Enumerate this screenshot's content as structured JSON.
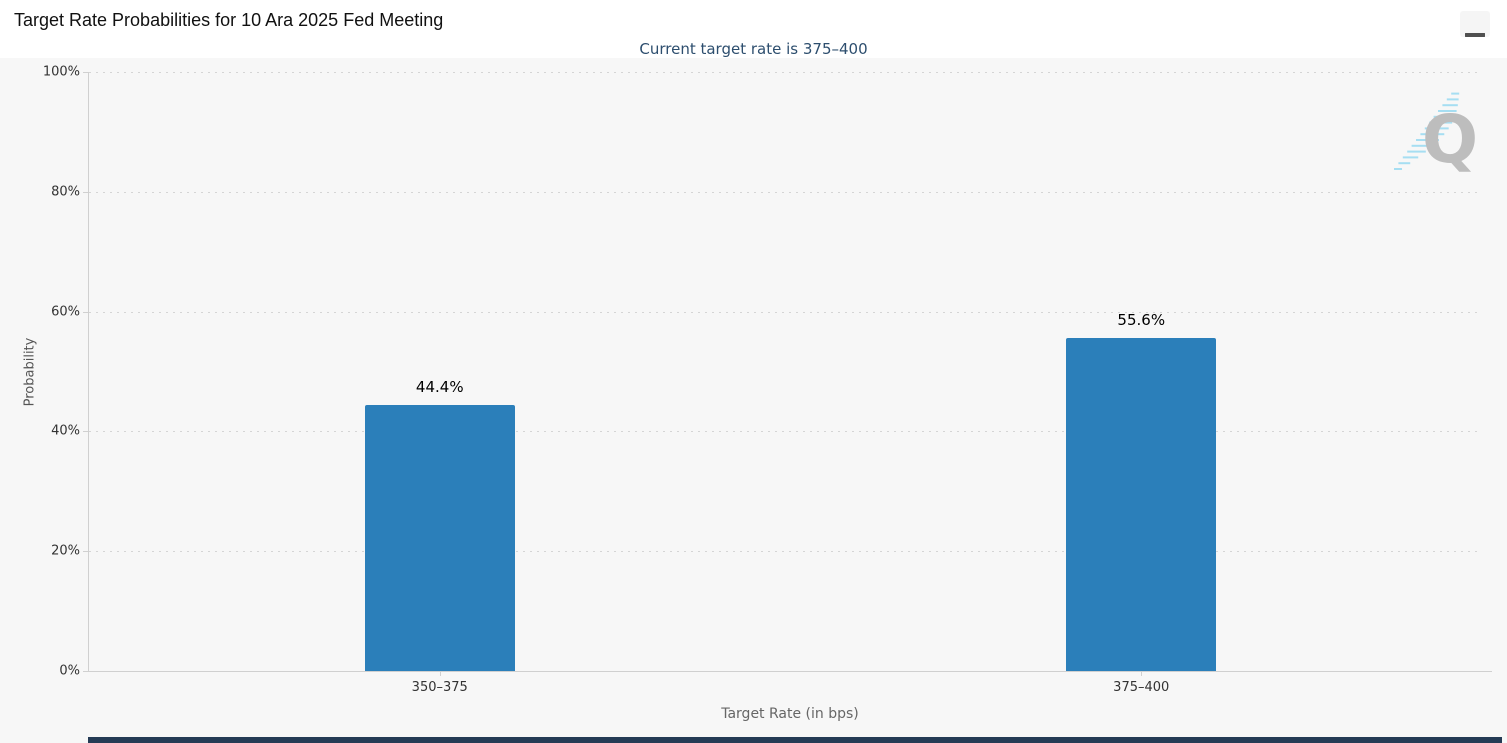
{
  "header": {
    "menu_icon": "hamburger-icon"
  },
  "chart_data": {
    "type": "bar",
    "title": "Target Rate Probabilities for 10 Ara 2025 Fed Meeting",
    "subtitle": "Current target rate is 375–400",
    "categories": [
      "350–375",
      "375–400"
    ],
    "values": [
      44.4,
      55.6
    ],
    "value_labels": [
      "44.4%",
      "55.6%"
    ],
    "xlabel": "Target Rate (in bps)",
    "ylabel": "Probability",
    "ylim": [
      0,
      100
    ],
    "ytick_step": 20,
    "ytick_labels": [
      "0%",
      "20%",
      "40%",
      "60%",
      "80%",
      "100%"
    ],
    "grid": "horizontal-dotted",
    "legend": "none",
    "bar_color": "#2b7fba",
    "subtitle_color": "#2d4e6e",
    "data_label_color": "#000000",
    "tick_label_color": "#333333",
    "axis_title_color": "#666666"
  },
  "watermark": {
    "letter": "Q",
    "letter_color": "#bdbdbd",
    "stripe_color": "#a6def2"
  },
  "footer": {
    "strip_color": "#253b55"
  }
}
